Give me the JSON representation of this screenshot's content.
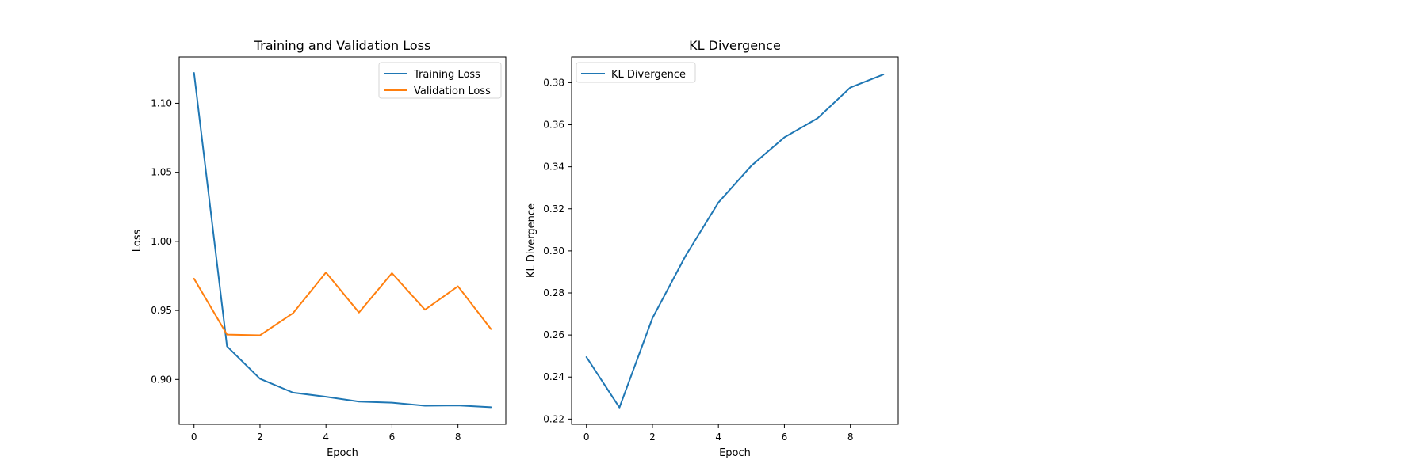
{
  "chart_data": [
    {
      "type": "line",
      "title": "Training and Validation Loss",
      "xlabel": "Epoch",
      "ylabel": "Loss",
      "x": [
        0,
        1,
        2,
        3,
        4,
        5,
        6,
        7,
        8,
        9
      ],
      "xlim": [
        -0.45,
        9.45
      ],
      "ylim": [
        0.8675,
        1.1335
      ],
      "xticks": [
        0,
        2,
        4,
        6,
        8
      ],
      "yticks": [
        0.9,
        0.95,
        1.0,
        1.05,
        1.1
      ],
      "xtick_labels": [
        "0",
        "2",
        "4",
        "6",
        "8"
      ],
      "ytick_labels": [
        "0.90",
        "0.95",
        "1.00",
        "1.05",
        "1.10"
      ],
      "grid": false,
      "legend_position": "top-right",
      "series": [
        {
          "name": "Training Loss",
          "color": "#1f77b4",
          "values": [
            1.122,
            0.924,
            0.9005,
            0.8905,
            0.8875,
            0.884,
            0.8832,
            0.881,
            0.8812,
            0.8799
          ]
        },
        {
          "name": "Validation Loss",
          "color": "#ff7f0e",
          "values": [
            0.973,
            0.9325,
            0.932,
            0.948,
            0.9775,
            0.9485,
            0.977,
            0.9505,
            0.9675,
            0.9365
          ]
        }
      ]
    },
    {
      "type": "line",
      "title": "KL Divergence",
      "xlabel": "Epoch",
      "ylabel": "KL Divergence",
      "x": [
        0,
        1,
        2,
        3,
        4,
        5,
        6,
        7,
        8,
        9
      ],
      "xlim": [
        -0.45,
        9.45
      ],
      "ylim": [
        0.2175,
        0.3922
      ],
      "xticks": [
        0,
        2,
        4,
        6,
        8
      ],
      "yticks": [
        0.22,
        0.24,
        0.26,
        0.28,
        0.3,
        0.32,
        0.34,
        0.36,
        0.38
      ],
      "xtick_labels": [
        "0",
        "2",
        "4",
        "6",
        "8"
      ],
      "ytick_labels": [
        "0.22",
        "0.24",
        "0.26",
        "0.28",
        "0.30",
        "0.32",
        "0.34",
        "0.36",
        "0.38"
      ],
      "grid": false,
      "legend_position": "top-left",
      "series": [
        {
          "name": "KL Divergence",
          "color": "#1f77b4",
          "values": [
            0.2495,
            0.2255,
            0.268,
            0.2975,
            0.323,
            0.3405,
            0.354,
            0.363,
            0.3777,
            0.3839
          ]
        }
      ]
    }
  ]
}
